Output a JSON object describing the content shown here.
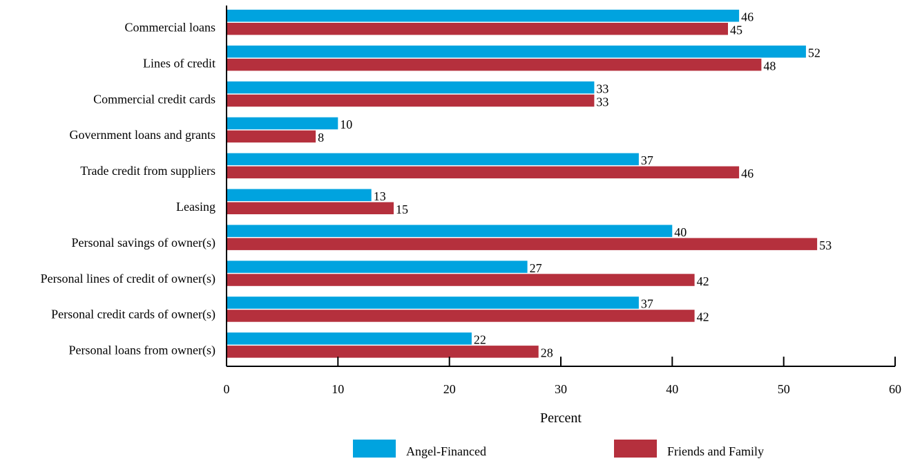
{
  "chart_data": {
    "type": "bar",
    "orientation": "horizontal",
    "categories": [
      "Commercial loans",
      "Lines of credit",
      "Commercial credit cards",
      "Government loans and grants",
      "Trade credit from suppliers",
      "Leasing",
      "Personal savings of owner(s)",
      "Personal lines of credit of owner(s)",
      "Personal credit cards of owner(s)",
      "Personal loans from owner(s)"
    ],
    "series": [
      {
        "name": "Angel-Financed",
        "color": "#00a3df",
        "values": [
          46,
          52,
          33,
          10,
          37,
          13,
          40,
          27,
          37,
          22
        ]
      },
      {
        "name": "Friends and Family",
        "color": "#b5303d",
        "values": [
          45,
          48,
          33,
          8,
          46,
          15,
          53,
          42,
          42,
          28
        ]
      }
    ],
    "xlabel": "Percent",
    "ylabel": "",
    "xlim": [
      0,
      60
    ],
    "x_ticks": [
      "0",
      "10",
      "20",
      "30",
      "40",
      "50",
      "60"
    ],
    "grid": false,
    "data_labels": true,
    "legend_position": "bottom"
  }
}
